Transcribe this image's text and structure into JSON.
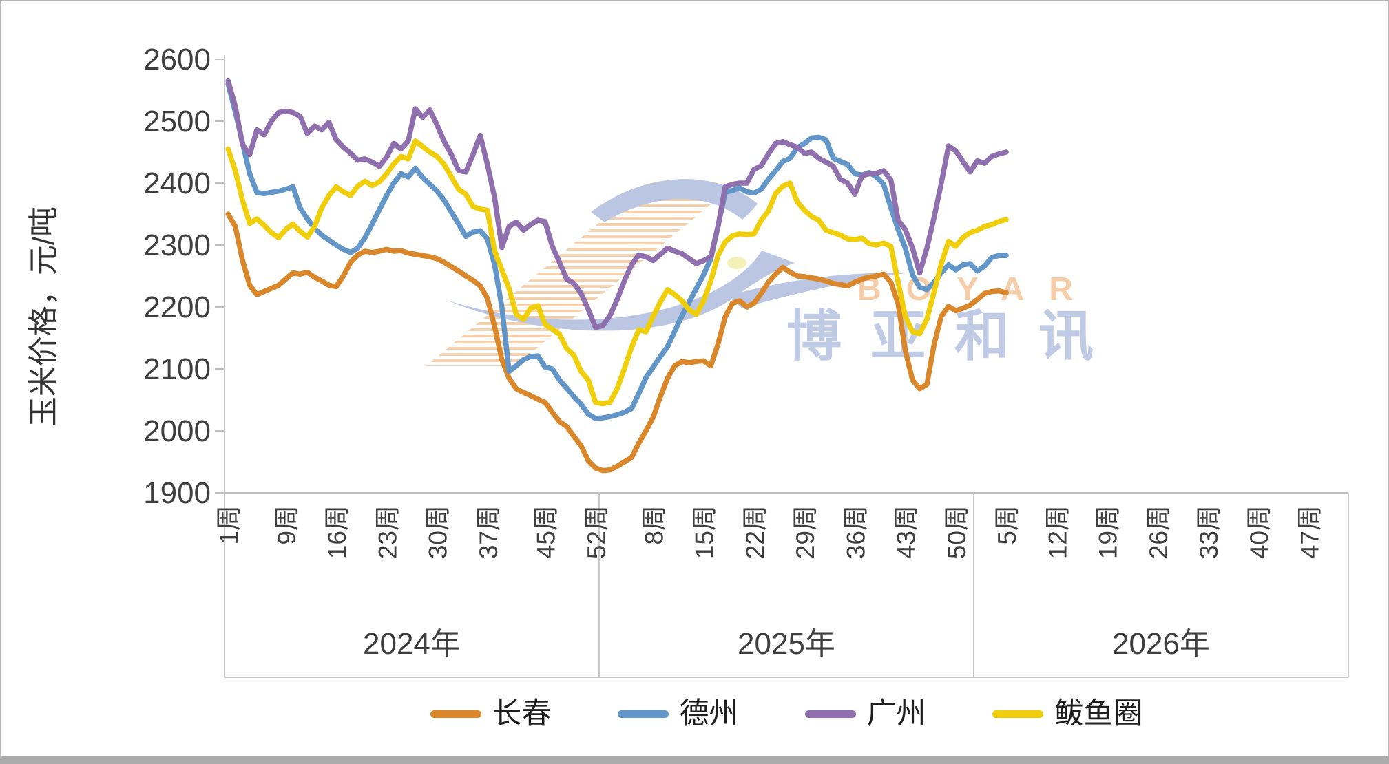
{
  "watermark": {
    "brand_latin": "BOYAR",
    "brand_cn": "博亚和讯",
    "latin_color": "#F5CBA4",
    "cn_color": "#BCC8E4",
    "bird_color": "#B8C4E1",
    "hatch_color": "#F5CFA9",
    "eye_color": "#F4F0B4"
  },
  "chart_data": {
    "type": "line",
    "title": "",
    "xlabel": "",
    "ylabel": "玉米价格，元/吨",
    "legend_position": "bottom",
    "grid": false,
    "y_axis": {
      "min": 1900,
      "max": 2600,
      "step": 100,
      "tick_labels": [
        "1900",
        "2000",
        "2100",
        "2200",
        "2300",
        "2400",
        "2500",
        "2600"
      ],
      "ticks": [
        1900,
        2000,
        2100,
        2200,
        2300,
        2400,
        2500,
        2600
      ]
    },
    "x_axis": {
      "unit": "周",
      "years": [
        {
          "label": "2024年",
          "weeks": 52,
          "tick_weeks": [
            1,
            9,
            16,
            23,
            30,
            37,
            45,
            52
          ],
          "tick_labels": [
            "1周",
            "9周",
            "16周",
            "23周",
            "30周",
            "37周",
            "45周",
            "52周"
          ]
        },
        {
          "label": "2025年",
          "weeks": 52,
          "tick_weeks": [
            8,
            15,
            22,
            29,
            36,
            43,
            50
          ],
          "tick_labels": [
            "8周",
            "15周",
            "22周",
            "29周",
            "36周",
            "43周",
            "50周"
          ]
        },
        {
          "label": "2026年",
          "weeks": 52,
          "tick_weeks": [
            5,
            12,
            19,
            26,
            33,
            40,
            47
          ],
          "tick_labels": [
            "5周",
            "12周",
            "19周",
            "26周",
            "33周",
            "40周",
            "47周"
          ]
        }
      ]
    },
    "series": [
      {
        "name": "长春",
        "color": "#D9872A",
        "year_values": [
          [
            2350,
            2330,
            2275,
            2235,
            2220,
            2225,
            2230,
            2235,
            2245,
            2255,
            2253,
            2256,
            2248,
            2242,
            2235,
            2233,
            2250,
            2272,
            2284,
            2290,
            2288,
            2290,
            2293,
            2290,
            2291,
            2287,
            2285,
            2283,
            2281,
            2278,
            2272,
            2265,
            2258,
            2250,
            2243,
            2234,
            2214,
            2168,
            2115,
            2085,
            2068,
            2062,
            2057,
            2051,
            2046,
            2030,
            2015,
            2007,
            1991,
            1976,
            1952,
            1940
          ],
          [
            1936,
            1937,
            1943,
            1950,
            1957,
            1980,
            2000,
            2022,
            2055,
            2085,
            2105,
            2112,
            2110,
            2112,
            2113,
            2105,
            2140,
            2184,
            2206,
            2210,
            2200,
            2206,
            2222,
            2240,
            2253,
            2264,
            2256,
            2250,
            2249,
            2247,
            2245,
            2242,
            2238,
            2236,
            2234,
            2240,
            2245,
            2248,
            2250,
            2253,
            2240,
            2205,
            2130,
            2082,
            2068,
            2075,
            2140,
            2185,
            2201,
            2194,
            2198,
            2203
          ],
          [
            2212,
            2222,
            2225,
            2226,
            2223
          ]
        ]
      },
      {
        "name": "德州",
        "color": "#6296C8",
        "year_values": [
          [
            2560,
            2515,
            2465,
            2415,
            2385,
            2383,
            2385,
            2387,
            2390,
            2394,
            2360,
            2342,
            2327,
            2316,
            2308,
            2300,
            2293,
            2288,
            2295,
            2312,
            2334,
            2357,
            2380,
            2400,
            2415,
            2410,
            2424,
            2409,
            2398,
            2387,
            2372,
            2353,
            2334,
            2314,
            2321,
            2323,
            2310,
            2268,
            2200,
            2096,
            2105,
            2115,
            2120,
            2121,
            2103,
            2100,
            2082,
            2069,
            2055,
            2043,
            2027,
            2020
          ],
          [
            2021,
            2023,
            2026,
            2030,
            2036,
            2060,
            2086,
            2103,
            2120,
            2136,
            2161,
            2186,
            2208,
            2230,
            2252,
            2278,
            2330,
            2385,
            2388,
            2392,
            2386,
            2384,
            2390,
            2406,
            2420,
            2435,
            2440,
            2457,
            2464,
            2473,
            2474,
            2470,
            2440,
            2435,
            2430,
            2415,
            2413,
            2417,
            2410,
            2398,
            2360,
            2325,
            2295,
            2252,
            2232,
            2228,
            2240,
            2255,
            2268,
            2260,
            2268,
            2270
          ],
          [
            2258,
            2266,
            2280,
            2283,
            2283
          ]
        ]
      },
      {
        "name": "广州",
        "color": "#8F6FAD",
        "year_values": [
          [
            2565,
            2524,
            2462,
            2446,
            2486,
            2478,
            2500,
            2514,
            2516,
            2514,
            2508,
            2480,
            2492,
            2486,
            2498,
            2470,
            2458,
            2448,
            2437,
            2439,
            2434,
            2427,
            2442,
            2464,
            2455,
            2468,
            2520,
            2506,
            2518,
            2494,
            2467,
            2446,
            2420,
            2418,
            2446,
            2477,
            2430,
            2376,
            2296,
            2330,
            2337,
            2324,
            2333,
            2340,
            2338,
            2298,
            2272,
            2245,
            2238,
            2222,
            2196,
            2167
          ],
          [
            2170,
            2186,
            2212,
            2242,
            2268,
            2284,
            2281,
            2275,
            2285,
            2295,
            2290,
            2286,
            2278,
            2270,
            2275,
            2281,
            2330,
            2394,
            2398,
            2400,
            2400,
            2422,
            2428,
            2447,
            2464,
            2467,
            2462,
            2458,
            2448,
            2450,
            2440,
            2434,
            2427,
            2406,
            2400,
            2382,
            2412,
            2415,
            2416,
            2420,
            2405,
            2340,
            2325,
            2295,
            2255,
            2295,
            2345,
            2400,
            2460,
            2452,
            2435,
            2418
          ],
          [
            2436,
            2432,
            2443,
            2447,
            2450
          ]
        ]
      },
      {
        "name": "鲅鱼圈",
        "color": "#F0CF0A",
        "year_values": [
          [
            2455,
            2420,
            2372,
            2335,
            2342,
            2332,
            2320,
            2312,
            2325,
            2334,
            2322,
            2313,
            2330,
            2360,
            2380,
            2394,
            2386,
            2380,
            2395,
            2403,
            2396,
            2402,
            2415,
            2431,
            2443,
            2439,
            2468,
            2459,
            2450,
            2443,
            2430,
            2410,
            2390,
            2382,
            2362,
            2358,
            2356,
            2290,
            2260,
            2230,
            2188,
            2180,
            2198,
            2202,
            2172,
            2164,
            2156,
            2133,
            2122,
            2096,
            2082,
            2046
          ],
          [
            2044,
            2046,
            2068,
            2100,
            2135,
            2163,
            2160,
            2185,
            2208,
            2228,
            2220,
            2210,
            2195,
            2188,
            2210,
            2242,
            2283,
            2305,
            2315,
            2318,
            2317,
            2318,
            2340,
            2355,
            2383,
            2395,
            2400,
            2370,
            2356,
            2346,
            2340,
            2324,
            2320,
            2316,
            2310,
            2309,
            2311,
            2302,
            2300,
            2303,
            2298,
            2240,
            2185,
            2160,
            2157,
            2180,
            2225,
            2270,
            2306,
            2298,
            2312,
            2320
          ],
          [
            2324,
            2330,
            2333,
            2338,
            2341
          ]
        ]
      }
    ]
  }
}
